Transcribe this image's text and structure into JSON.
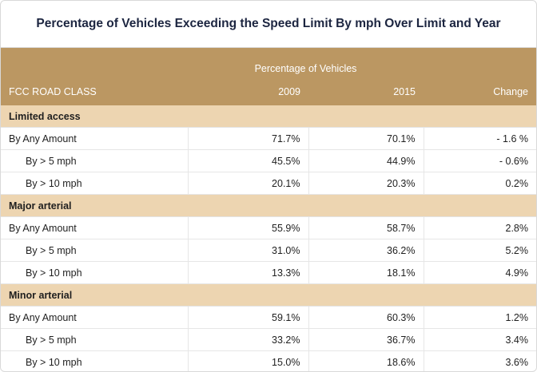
{
  "title": "Percentage of Vehicles Exceeding the Speed Limit By mph Over Limit and Year",
  "header": {
    "group_label": "Percentage of Vehicles",
    "col_class": "FCC ROAD CLASS",
    "col_2009": "2009",
    "col_2015": "2015",
    "col_change": "Change"
  },
  "groups": [
    {
      "name": "Limited access",
      "rows": [
        {
          "label": "By Any Amount",
          "v2009": "71.7%",
          "v2015": "70.1%",
          "change": "- 1.6 %"
        },
        {
          "label": "By > 5 mph",
          "v2009": "45.5%",
          "v2015": "44.9%",
          "change": "- 0.6%"
        },
        {
          "label": "By > 10 mph",
          "v2009": "20.1%",
          "v2015": "20.3%",
          "change": "0.2%"
        }
      ]
    },
    {
      "name": "Major arterial",
      "rows": [
        {
          "label": "By Any Amount",
          "v2009": "55.9%",
          "v2015": "58.7%",
          "change": "2.8%"
        },
        {
          "label": "By > 5 mph",
          "v2009": "31.0%",
          "v2015": "36.2%",
          "change": "5.2%"
        },
        {
          "label": "By > 10 mph",
          "v2009": "13.3%",
          "v2015": "18.1%",
          "change": "4.9%"
        }
      ]
    },
    {
      "name": "Minor arterial",
      "rows": [
        {
          "label": "By Any Amount",
          "v2009": "59.1%",
          "v2015": "60.3%",
          "change": "1.2%"
        },
        {
          "label": "By > 5 mph",
          "v2009": "33.2%",
          "v2015": "36.7%",
          "change": "3.4%"
        },
        {
          "label": "By > 10 mph",
          "v2009": "15.0%",
          "v2015": "18.6%",
          "change": "3.6%"
        }
      ]
    }
  ]
}
